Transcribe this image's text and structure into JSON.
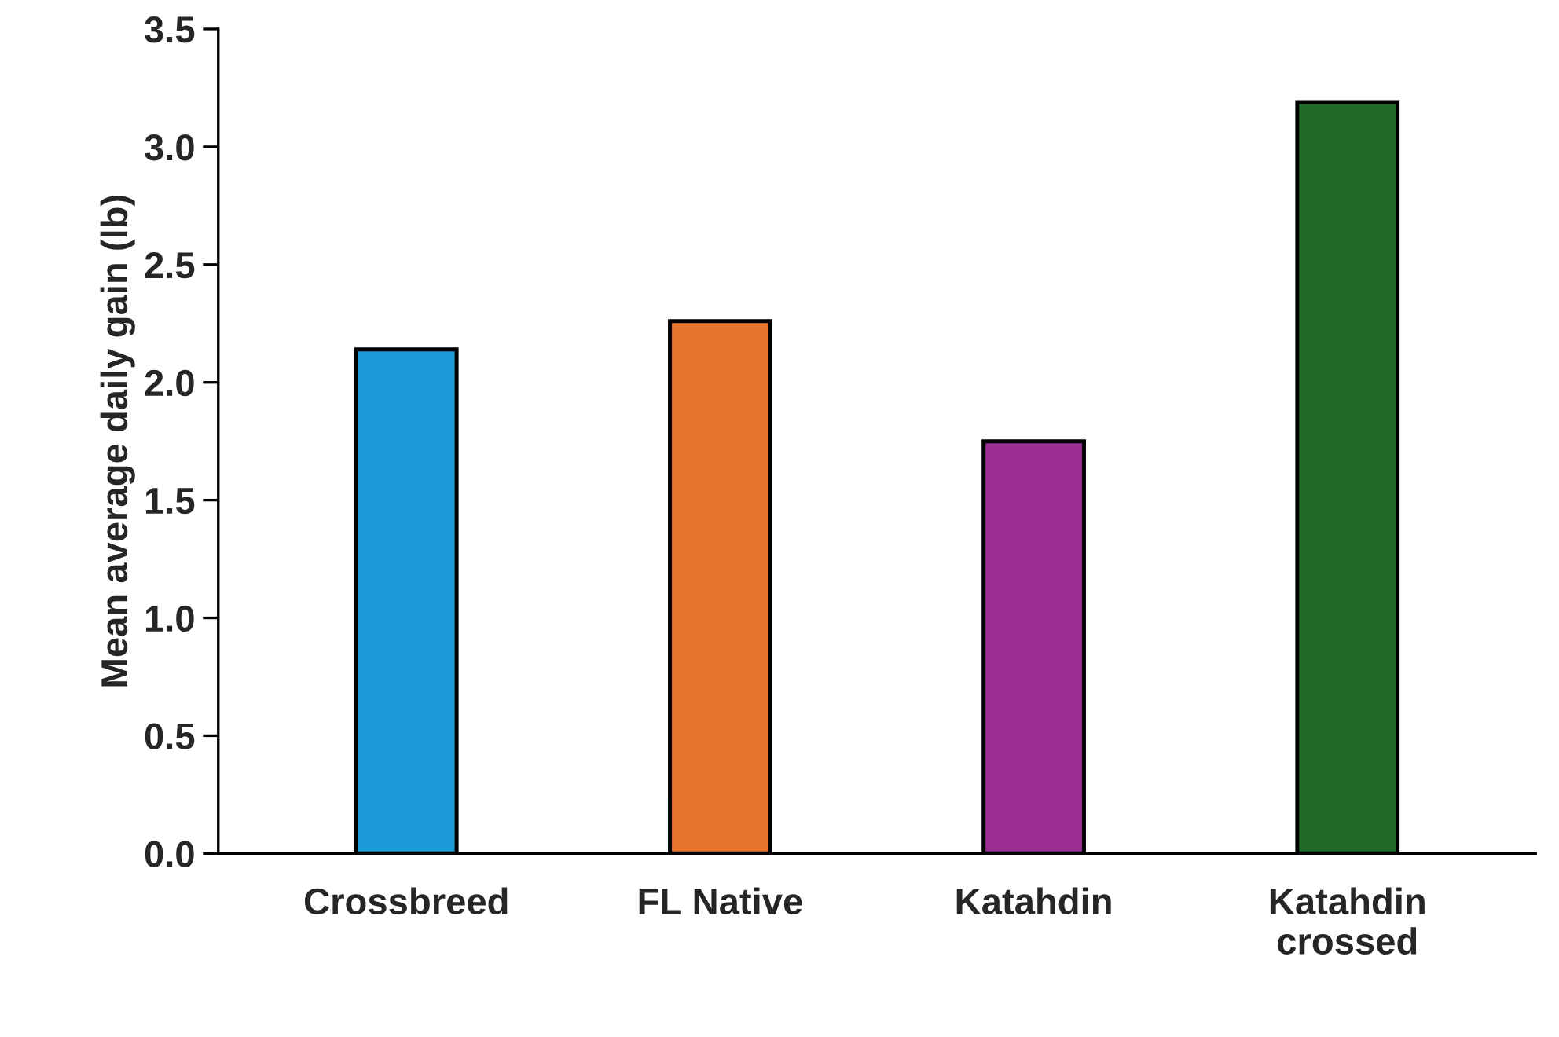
{
  "chart_data": {
    "type": "bar",
    "ylabel": "Mean average daily gain (lb)",
    "categories": [
      "Crossbreed",
      "FL Native",
      "Katahdin",
      "Katahdin\ncrossed"
    ],
    "values": [
      2.14,
      2.26,
      1.75,
      3.19
    ],
    "colors": [
      "#1a9ad6",
      "#e8742e",
      "#9b2f94",
      "#1f6b27"
    ],
    "ylim": [
      0,
      3.5
    ],
    "yticks": [
      {
        "value": 0,
        "label": "0.0"
      },
      {
        "value": 0.5,
        "label": "0.5"
      },
      {
        "value": 1,
        "label": "1.0"
      },
      {
        "value": 1.5,
        "label": "1.5"
      },
      {
        "value": 2,
        "label": "2.0"
      },
      {
        "value": 2.5,
        "label": "2.5"
      },
      {
        "value": 3,
        "label": "3.0"
      },
      {
        "value": 3.5,
        "label": "3.5"
      }
    ],
    "grid": false,
    "legend": false
  }
}
